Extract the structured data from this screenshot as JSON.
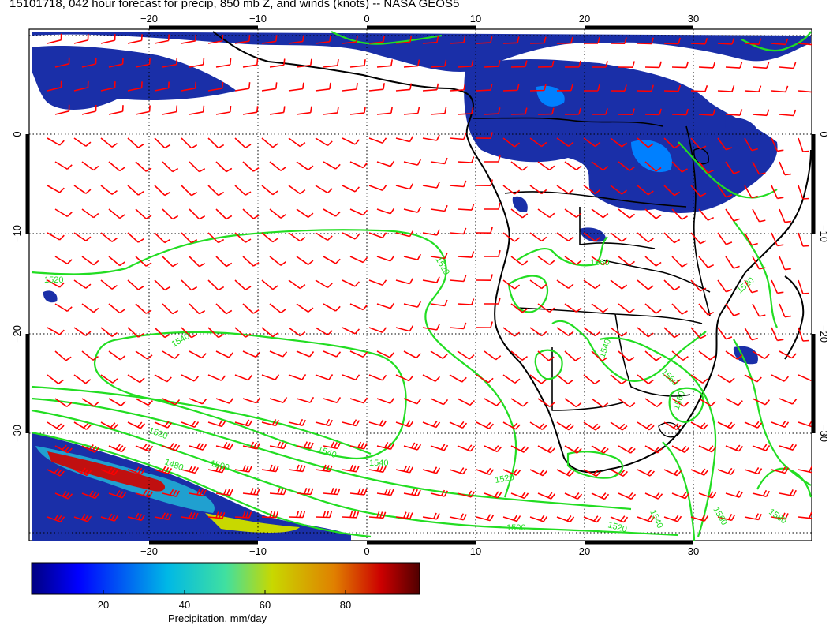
{
  "title": "15101718, 042 hour forecast for precip, 850 mb Z, and winds (knots) -- NASA GEOS5",
  "axes": {
    "lon_ticks_top": [
      "−20",
      "−10",
      "0",
      "10",
      "20",
      "30"
    ],
    "lon_ticks_bottom": [
      "−20",
      "−10",
      "0",
      "10",
      "20",
      "30"
    ],
    "lat_ticks_left": [
      "0",
      "−10",
      "−20",
      "−30"
    ],
    "lat_ticks_right": [
      "0",
      "−10",
      "−20",
      "−30"
    ]
  },
  "contours": {
    "labels": [
      "1520",
      "1520",
      "1540",
      "1540",
      "1520",
      "1540",
      "1560",
      "1520",
      "1500",
      "1480",
      "1500",
      "1520",
      "1540",
      "1520",
      "1560",
      "1560",
      "1540",
      "1560",
      "1580"
    ],
    "color": "#22dd22"
  },
  "colorbar": {
    "tick_labels": [
      "20",
      "40",
      "60",
      "80"
    ],
    "label": "Precipitation, mm/day"
  },
  "colors": {
    "wind_barbs": "#ff0000",
    "contours": "#22dd22",
    "coastline": "#000000"
  }
}
